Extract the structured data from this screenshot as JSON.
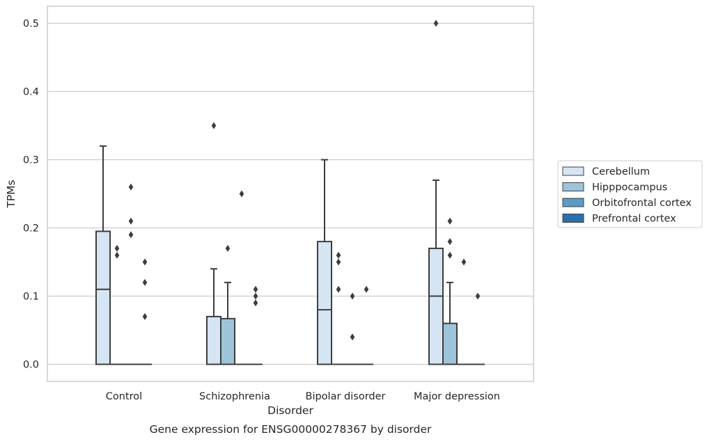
{
  "chart_data": {
    "type": "box",
    "xlabel": "Disorder",
    "ylabel": "TPMs",
    "caption": "Gene expression for ENSG00000278367 by disorder",
    "categories": [
      "Control",
      "Schizophrenia",
      "Bipolar disorder",
      "Major depression"
    ],
    "yticks": [
      "0.0",
      "0.1",
      "0.2",
      "0.3",
      "0.4",
      "0.5"
    ],
    "ylim": [
      -0.025,
      0.525
    ],
    "grid": "horizontal",
    "legend_position": "right",
    "series": [
      {
        "name": "Cerebellum",
        "color": "#d6e5f3",
        "boxes": [
          {
            "category": "Control",
            "q1": 0.0,
            "median": 0.11,
            "q3": 0.195,
            "whisker_low": 0.0,
            "whisker_high": 0.32,
            "outliers": []
          },
          {
            "category": "Schizophrenia",
            "q1": 0.0,
            "median": 0.0,
            "q3": 0.07,
            "whisker_low": 0.0,
            "whisker_high": 0.14,
            "outliers": [
              0.35
            ]
          },
          {
            "category": "Bipolar disorder",
            "q1": 0.0,
            "median": 0.08,
            "q3": 0.18,
            "whisker_low": 0.0,
            "whisker_high": 0.3,
            "outliers": []
          },
          {
            "category": "Major depression",
            "q1": 0.0,
            "median": 0.1,
            "q3": 0.17,
            "whisker_low": 0.0,
            "whisker_high": 0.27,
            "outliers": [
              0.5
            ]
          }
        ]
      },
      {
        "name": "Hipppocampus",
        "color": "#9ec4dc",
        "boxes": [
          {
            "category": "Control",
            "q1": 0.0,
            "median": 0.0,
            "q3": 0.0,
            "whisker_low": 0.0,
            "whisker_high": 0.0,
            "outliers": [
              0.16,
              0.17
            ]
          },
          {
            "category": "Schizophrenia",
            "q1": 0.0,
            "median": 0.0,
            "q3": 0.067,
            "whisker_low": 0.0,
            "whisker_high": 0.12,
            "outliers": [
              0.17
            ]
          },
          {
            "category": "Bipolar disorder",
            "q1": 0.0,
            "median": 0.0,
            "q3": 0.0,
            "whisker_low": 0.0,
            "whisker_high": 0.0,
            "outliers": [
              0.11,
              0.15,
              0.16
            ]
          },
          {
            "category": "Major depression",
            "q1": 0.0,
            "median": 0.0,
            "q3": 0.06,
            "whisker_low": 0.0,
            "whisker_high": 0.12,
            "outliers": [
              0.16,
              0.18,
              0.21
            ]
          }
        ]
      },
      {
        "name": "Orbitofrontal cortex",
        "color": "#5a9bc7",
        "boxes": [
          {
            "category": "Control",
            "q1": 0.0,
            "median": 0.0,
            "q3": 0.0,
            "whisker_low": 0.0,
            "whisker_high": 0.0,
            "outliers": [
              0.19,
              0.21,
              0.26
            ]
          },
          {
            "category": "Schizophrenia",
            "q1": 0.0,
            "median": 0.0,
            "q3": 0.0,
            "whisker_low": 0.0,
            "whisker_high": 0.0,
            "outliers": [
              0.25
            ]
          },
          {
            "category": "Bipolar disorder",
            "q1": 0.0,
            "median": 0.0,
            "q3": 0.0,
            "whisker_low": 0.0,
            "whisker_high": 0.0,
            "outliers": [
              0.04,
              0.1
            ]
          },
          {
            "category": "Major depression",
            "q1": 0.0,
            "median": 0.0,
            "q3": 0.0,
            "whisker_low": 0.0,
            "whisker_high": 0.0,
            "outliers": [
              0.15
            ]
          }
        ]
      },
      {
        "name": "Prefrontal cortex",
        "color": "#2b6fac",
        "boxes": [
          {
            "category": "Control",
            "q1": 0.0,
            "median": 0.0,
            "q3": 0.0,
            "whisker_low": 0.0,
            "whisker_high": 0.0,
            "outliers": [
              0.07,
              0.12,
              0.15
            ]
          },
          {
            "category": "Schizophrenia",
            "q1": 0.0,
            "median": 0.0,
            "q3": 0.0,
            "whisker_low": 0.0,
            "whisker_high": 0.0,
            "outliers": [
              0.09,
              0.1,
              0.11
            ]
          },
          {
            "category": "Bipolar disorder",
            "q1": 0.0,
            "median": 0.0,
            "q3": 0.0,
            "whisker_low": 0.0,
            "whisker_high": 0.0,
            "outliers": [
              0.11
            ]
          },
          {
            "category": "Major depression",
            "q1": 0.0,
            "median": 0.0,
            "q3": 0.0,
            "whisker_low": 0.0,
            "whisker_high": 0.0,
            "outliers": [
              0.1
            ]
          }
        ]
      }
    ],
    "colors": {
      "line": "#3d3d3d",
      "grid": "#cccccc",
      "frame": "#cccccc"
    }
  }
}
